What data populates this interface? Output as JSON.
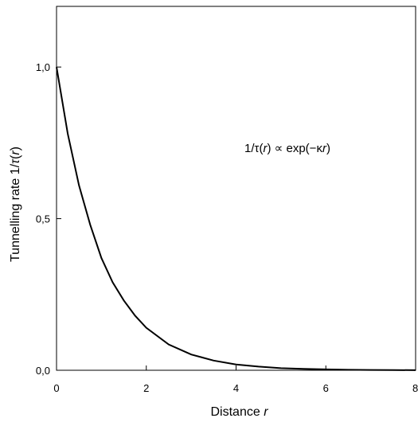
{
  "chart_data": {
    "type": "line",
    "xlabel": "Distance",
    "xlabel_var": "r",
    "ylabel": "Tunnelling rate",
    "ylabel_expr": [
      "1/",
      "τ",
      "(",
      "r",
      ")"
    ],
    "annotation": {
      "segments": [
        "1/",
        "τ",
        "(",
        "r",
        ") ∝ exp(−",
        "κ",
        "r",
        ")"
      ],
      "text": "1/τ(r) ∝ exp(−κr)"
    },
    "xlim": [
      0,
      8
    ],
    "ylim": [
      0,
      1.2
    ],
    "x_ticks": [
      0,
      2,
      4,
      6,
      8
    ],
    "x_tick_labels": [
      "0",
      "2",
      "4",
      "6",
      "8"
    ],
    "y_ticks": [
      0,
      0.5,
      1.0
    ],
    "y_tick_labels": [
      "0,0",
      "0,5",
      "1,0"
    ],
    "grid": false,
    "series": [
      {
        "x": [
          0,
          0.25,
          0.5,
          0.75,
          1,
          1.25,
          1.5,
          1.75,
          2,
          2.5,
          3,
          3.5,
          4,
          4.5,
          5,
          5.5,
          6,
          6.5,
          7,
          7.5,
          8
        ],
        "y": [
          1.0,
          0.78,
          0.61,
          0.48,
          0.37,
          0.29,
          0.23,
          0.18,
          0.14,
          0.085,
          0.052,
          0.032,
          0.019,
          0.012,
          0.007,
          0.0045,
          0.0028,
          0.0017,
          0.001,
          0.0006,
          0.0004
        ]
      }
    ]
  }
}
